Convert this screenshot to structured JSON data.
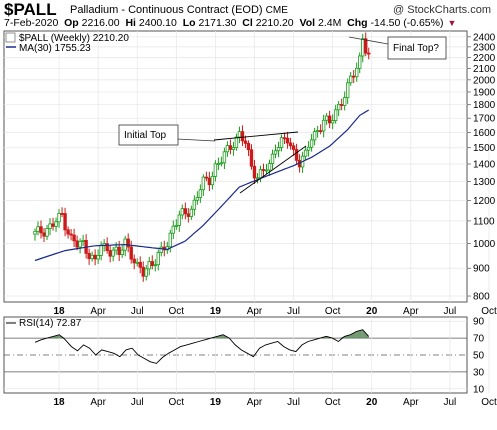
{
  "header": {
    "symbol": "$PALL",
    "description": "Palladium - Continuous Contract (EOD)",
    "exchange": "CME",
    "watermark": "@ StockCharts.com",
    "quote": {
      "date": "7-Feb-2020",
      "open_label": "Op",
      "open": "2216.00",
      "high_label": "Hi",
      "high": "2400.10",
      "low_label": "Lo",
      "low": "2171.30",
      "close_label": "Cl",
      "close": "2210.20",
      "vol_label": "Vol",
      "vol": "2.4M",
      "chg_label": "Chg",
      "chg": "-14.50 (-0.65%)"
    }
  },
  "legend": {
    "price": "$PALL (Weekly) 2210.20",
    "ma": "MA(30) 1755.23"
  },
  "annotations": {
    "initial_top": "Initial Top",
    "final_top": "Final Top?"
  },
  "colors": {
    "up": "#1a9c1a",
    "down": "#cc1a1a",
    "ma": "#1a2a8c",
    "rsi": "#000000",
    "rsi_fill": "#5a8a5a"
  },
  "chart_data": [
    {
      "type": "candlestick",
      "title": "$PALL (Weekly)",
      "x_ticks": [
        "18",
        "Apr",
        "Jul",
        "Oct",
        "19",
        "Apr",
        "Jul",
        "Oct",
        "20",
        "Apr",
        "Jul",
        "Oct"
      ],
      "y_ticks": [
        800,
        900,
        1000,
        1100,
        1200,
        1300,
        1400,
        1500,
        1600,
        1700,
        1800,
        1900,
        2000,
        2100,
        2200,
        2300,
        2400
      ],
      "y_scale": "log",
      "ylim": [
        780,
        2460
      ],
      "series": [
        {
          "name": "$PALL (Weekly)",
          "close_path": [
            [
              0,
              1040
            ],
            [
              3,
              1060
            ],
            [
              6,
              1080
            ],
            [
              8,
              1110
            ],
            [
              9,
              1130
            ],
            [
              10,
              1090
            ],
            [
              12,
              1020
            ],
            [
              14,
              990
            ],
            [
              16,
              1000
            ],
            [
              18,
              960
            ],
            [
              20,
              920
            ],
            [
              22,
              990
            ],
            [
              24,
              980
            ],
            [
              26,
              970
            ],
            [
              28,
              950
            ],
            [
              30,
              1010
            ],
            [
              32,
              960
            ],
            [
              34,
              900
            ],
            [
              36,
              880
            ],
            [
              38,
              920
            ],
            [
              40,
              930
            ],
            [
              42,
              960
            ],
            [
              44,
              1000
            ],
            [
              46,
              1080
            ],
            [
              48,
              1120
            ],
            [
              50,
              1130
            ],
            [
              52,
              1160
            ],
            [
              54,
              1230
            ],
            [
              56,
              1290
            ],
            [
              58,
              1310
            ],
            [
              60,
              1390
            ],
            [
              62,
              1420
            ],
            [
              64,
              1480
            ],
            [
              66,
              1540
            ],
            [
              68,
              1590
            ],
            [
              70,
              1520
            ],
            [
              72,
              1390
            ],
            [
              74,
              1330
            ],
            [
              76,
              1360
            ],
            [
              78,
              1380
            ],
            [
              80,
              1520
            ],
            [
              82,
              1540
            ],
            [
              84,
              1540
            ],
            [
              86,
              1470
            ],
            [
              88,
              1420
            ],
            [
              90,
              1450
            ],
            [
              92,
              1560
            ],
            [
              94,
              1620
            ],
            [
              96,
              1690
            ],
            [
              98,
              1650
            ],
            [
              100,
              1760
            ],
            [
              102,
              1830
            ],
            [
              104,
              1930
            ],
            [
              106,
              2050
            ],
            [
              108,
              2200
            ],
            [
              109,
              2400
            ],
            [
              110,
              2280
            ],
            [
              111,
              2210
            ]
          ]
        },
        {
          "name": "MA(30)",
          "values_path": [
            [
              0,
              930
            ],
            [
              10,
              970
            ],
            [
              20,
              990
            ],
            [
              30,
              995
            ],
            [
              40,
              980
            ],
            [
              44,
              975
            ],
            [
              50,
              1010
            ],
            [
              56,
              1080
            ],
            [
              62,
              1170
            ],
            [
              68,
              1270
            ],
            [
              74,
              1310
            ],
            [
              80,
              1350
            ],
            [
              86,
              1390
            ],
            [
              92,
              1440
            ],
            [
              98,
              1510
            ],
            [
              104,
              1620
            ],
            [
              108,
              1720
            ],
            [
              111,
              1760
            ]
          ]
        }
      ],
      "annotations": [
        "Initial Top",
        "Final Top?"
      ]
    },
    {
      "type": "line",
      "title": "RSI(14) 72.87",
      "ylabel": "",
      "y_ticks": [
        10,
        30,
        50,
        70,
        90
      ],
      "ylim": [
        5,
        95
      ],
      "x_ticks": [
        "18",
        "Apr",
        "Jul",
        "Oct",
        "19",
        "Apr",
        "Jul",
        "Oct",
        "20",
        "Apr",
        "Jul",
        "Oct"
      ],
      "series": [
        {
          "name": "RSI(14)",
          "values": [
            65,
            68,
            70,
            72,
            74,
            68,
            60,
            55,
            62,
            58,
            50,
            56,
            54,
            52,
            48,
            56,
            58,
            50,
            46,
            42,
            40,
            47,
            52,
            56,
            60,
            62,
            64,
            66,
            68,
            70,
            72,
            74,
            70,
            62,
            56,
            52,
            48,
            58,
            62,
            64,
            66,
            60,
            56,
            54,
            62,
            66,
            68,
            70,
            72,
            70,
            66,
            72,
            74,
            78,
            80,
            72
          ]
        }
      ]
    }
  ]
}
